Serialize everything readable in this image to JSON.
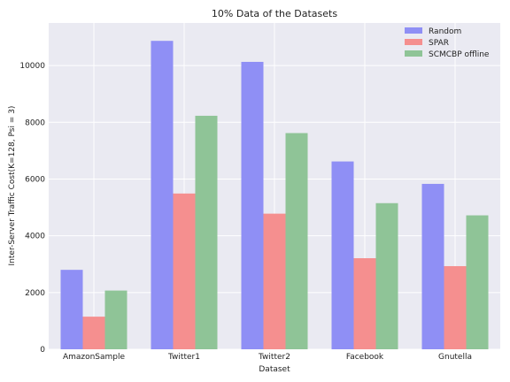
{
  "chart_data": {
    "type": "bar",
    "title": "10% Data of the Datasets",
    "xlabel": "Dataset",
    "ylabel": "Inter-Server Traffic Cost(K=128, Psi = 3)",
    "categories": [
      "AmazonSample",
      "Twitter1",
      "Twitter2",
      "Facebook",
      "Gnutella"
    ],
    "ylim": [
      0,
      11500
    ],
    "yticks": [
      0,
      2000,
      4000,
      6000,
      8000,
      10000
    ],
    "grid": true,
    "legend_position": "top-right",
    "series": [
      {
        "name": "Random",
        "color": "#8f8ff5",
        "values": [
          2800,
          10870,
          10130,
          6620,
          5830
        ]
      },
      {
        "name": "SPAR",
        "color": "#f58f8f",
        "values": [
          1150,
          5490,
          4780,
          3210,
          2930
        ]
      },
      {
        "name": "SCMCBP offline",
        "color": "#8fc497",
        "values": [
          2070,
          8230,
          7620,
          5150,
          4720
        ]
      }
    ]
  }
}
